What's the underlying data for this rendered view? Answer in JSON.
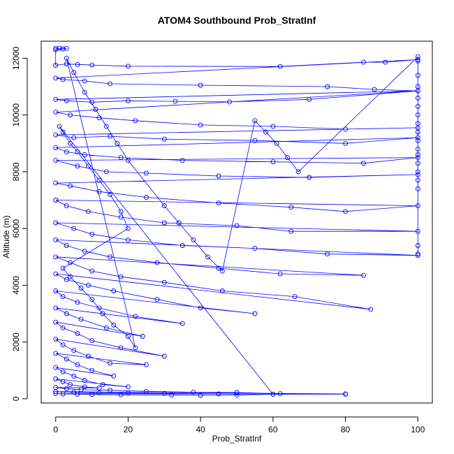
{
  "chart_data": {
    "type": "scatter",
    "title": "ATOM4 Southbound Prob_StratInf",
    "xlabel": "Prob_StratInf",
    "ylabel": "Altitude (m)",
    "xlim": [
      -4,
      104
    ],
    "ylim": [
      -150,
      12600
    ],
    "x_ticks": [
      0,
      20,
      40,
      60,
      80,
      100
    ],
    "y_ticks": [
      0,
      2000,
      4000,
      6000,
      8000,
      10000,
      12000
    ],
    "grid": false,
    "legend": "none",
    "series": [
      {
        "color": "#0000ff",
        "marker": "open-circle",
        "connected": true,
        "points": [
          [
            0,
            12350
          ],
          [
            1,
            12350
          ],
          [
            3,
            12350
          ],
          [
            2,
            12330
          ],
          [
            0,
            12300
          ],
          [
            0,
            11750
          ],
          [
            3,
            11800
          ],
          [
            6,
            11780
          ],
          [
            10,
            11760
          ],
          [
            20,
            11720
          ],
          [
            62,
            11710
          ],
          [
            85,
            11860
          ],
          [
            91,
            11860
          ],
          [
            100,
            11950
          ],
          [
            0,
            11300
          ],
          [
            2,
            11250
          ],
          [
            8,
            11200
          ],
          [
            15,
            11100
          ],
          [
            40,
            11050
          ],
          [
            75,
            11000
          ],
          [
            88,
            10900
          ],
          [
            100,
            10850
          ],
          [
            0,
            10550
          ],
          [
            3,
            10500
          ],
          [
            10,
            10450
          ],
          [
            20,
            10500
          ],
          [
            33,
            10480
          ],
          [
            48,
            10460
          ],
          [
            70,
            10550
          ],
          [
            100,
            10850
          ],
          [
            0,
            10100
          ],
          [
            4,
            10000
          ],
          [
            12,
            9900
          ],
          [
            22,
            9800
          ],
          [
            40,
            9650
          ],
          [
            60,
            9600
          ],
          [
            80,
            9500
          ],
          [
            100,
            9550
          ],
          [
            0,
            9300
          ],
          [
            5,
            9200
          ],
          [
            15,
            9250
          ],
          [
            30,
            9150
          ],
          [
            55,
            9100
          ],
          [
            80,
            9000
          ],
          [
            100,
            9200
          ],
          [
            0,
            8850
          ],
          [
            3,
            8700
          ],
          [
            8,
            8600
          ],
          [
            18,
            8500
          ],
          [
            35,
            8400
          ],
          [
            60,
            8350
          ],
          [
            85,
            8300
          ],
          [
            100,
            8500
          ],
          [
            0,
            8400
          ],
          [
            6,
            8200
          ],
          [
            14,
            8000
          ],
          [
            25,
            7950
          ],
          [
            45,
            7850
          ],
          [
            70,
            7800
          ],
          [
            100,
            7900
          ],
          [
            0,
            7600
          ],
          [
            4,
            7500
          ],
          [
            12,
            7300
          ],
          [
            25,
            7100
          ],
          [
            45,
            6900
          ],
          [
            65,
            6750
          ],
          [
            80,
            6600
          ],
          [
            100,
            6800
          ],
          [
            0,
            7000
          ],
          [
            3,
            6800
          ],
          [
            9,
            6600
          ],
          [
            18,
            6400
          ],
          [
            30,
            6200
          ],
          [
            50,
            6100
          ],
          [
            65,
            5900
          ],
          [
            100,
            5900
          ],
          [
            0,
            6200
          ],
          [
            5,
            6000
          ],
          [
            10,
            5800
          ],
          [
            20,
            5600
          ],
          [
            35,
            5400
          ],
          [
            55,
            5300
          ],
          [
            75,
            5100
          ],
          [
            100,
            5050
          ],
          [
            0,
            5600
          ],
          [
            3,
            5400
          ],
          [
            8,
            5200
          ],
          [
            15,
            5000
          ],
          [
            28,
            4800
          ],
          [
            45,
            4600
          ],
          [
            62,
            4400
          ],
          [
            85,
            4350
          ],
          [
            0,
            5000
          ],
          [
            4,
            4800
          ],
          [
            10,
            4500
          ],
          [
            18,
            4300
          ],
          [
            30,
            4100
          ],
          [
            46,
            3800
          ],
          [
            66,
            3600
          ],
          [
            87,
            3150
          ],
          [
            0,
            4400
          ],
          [
            3,
            4200
          ],
          [
            9,
            4000
          ],
          [
            16,
            3800
          ],
          [
            28,
            3500
          ],
          [
            40,
            3200
          ],
          [
            55,
            3000
          ],
          [
            0,
            3800
          ],
          [
            2,
            3600
          ],
          [
            6,
            3400
          ],
          [
            12,
            3200
          ],
          [
            22,
            2900
          ],
          [
            35,
            2650
          ],
          [
            0,
            3200
          ],
          [
            3,
            3000
          ],
          [
            7,
            2800
          ],
          [
            14,
            2500
          ],
          [
            24,
            2200
          ],
          [
            0,
            2700
          ],
          [
            2,
            2500
          ],
          [
            6,
            2300
          ],
          [
            10,
            2050
          ],
          [
            18,
            1800
          ],
          [
            30,
            1500
          ],
          [
            0,
            2100
          ],
          [
            2,
            1900
          ],
          [
            5,
            1700
          ],
          [
            9,
            1500
          ],
          [
            15,
            1250
          ],
          [
            25,
            1200
          ],
          [
            0,
            1600
          ],
          [
            3,
            1400
          ],
          [
            6,
            1200
          ],
          [
            10,
            1000
          ],
          [
            16,
            800
          ],
          [
            0,
            1100
          ],
          [
            2,
            950
          ],
          [
            5,
            800
          ],
          [
            8,
            650
          ],
          [
            13,
            500
          ],
          [
            20,
            420
          ],
          [
            0,
            700
          ],
          [
            2,
            600
          ],
          [
            4,
            500
          ],
          [
            8,
            420
          ],
          [
            12,
            380
          ],
          [
            0,
            400
          ],
          [
            3,
            350
          ],
          [
            7,
            320
          ],
          [
            15,
            300
          ],
          [
            25,
            260
          ],
          [
            38,
            230
          ],
          [
            50,
            220
          ],
          [
            62,
            180
          ],
          [
            80,
            170
          ],
          [
            0,
            250
          ],
          [
            5,
            230
          ],
          [
            12,
            210
          ],
          [
            20,
            200
          ],
          [
            30,
            190
          ],
          [
            45,
            170
          ],
          [
            60,
            160
          ],
          [
            80,
            160
          ],
          [
            0,
            180
          ],
          [
            2,
            170
          ],
          [
            6,
            160
          ],
          [
            10,
            150
          ],
          [
            18,
            140
          ],
          [
            32,
            130
          ],
          [
            40,
            120
          ],
          [
            50,
            130
          ],
          [
            60,
            160
          ],
          [
            1,
            9600
          ],
          [
            2,
            9400
          ],
          [
            4,
            9000
          ],
          [
            6,
            8700
          ],
          [
            9,
            8200
          ],
          [
            12,
            7700
          ],
          [
            15,
            7200
          ],
          [
            18,
            6600
          ],
          [
            20,
            6000
          ],
          [
            2,
            4600
          ],
          [
            4,
            4300
          ],
          [
            7,
            3900
          ],
          [
            10,
            3500
          ],
          [
            13,
            3000
          ],
          [
            16,
            2600
          ],
          [
            20,
            2200
          ],
          [
            22,
            1800
          ],
          [
            3,
            12000
          ],
          [
            5,
            11500
          ],
          [
            8,
            10800
          ],
          [
            11,
            10200
          ],
          [
            14,
            9600
          ],
          [
            17,
            9000
          ],
          [
            20,
            8400
          ],
          [
            30,
            6800
          ],
          [
            34,
            6200
          ],
          [
            38,
            5600
          ],
          [
            42,
            5000
          ],
          [
            46,
            4500
          ],
          [
            55,
            9800
          ],
          [
            58,
            9400
          ],
          [
            61,
            9000
          ],
          [
            64,
            8500
          ],
          [
            67,
            8000
          ],
          [
            100,
            12050
          ],
          [
            100,
            11900
          ],
          [
            100,
            11400
          ],
          [
            100,
            11000
          ],
          [
            100,
            10600
          ],
          [
            100,
            10300
          ],
          [
            100,
            10000
          ],
          [
            100,
            9700
          ],
          [
            100,
            9400
          ],
          [
            100,
            9100
          ],
          [
            100,
            8800
          ],
          [
            100,
            8600
          ],
          [
            100,
            8300
          ],
          [
            100,
            8000
          ],
          [
            100,
            7700
          ],
          [
            100,
            7400
          ],
          [
            100,
            5400
          ],
          [
            100,
            5100
          ]
        ]
      }
    ]
  }
}
